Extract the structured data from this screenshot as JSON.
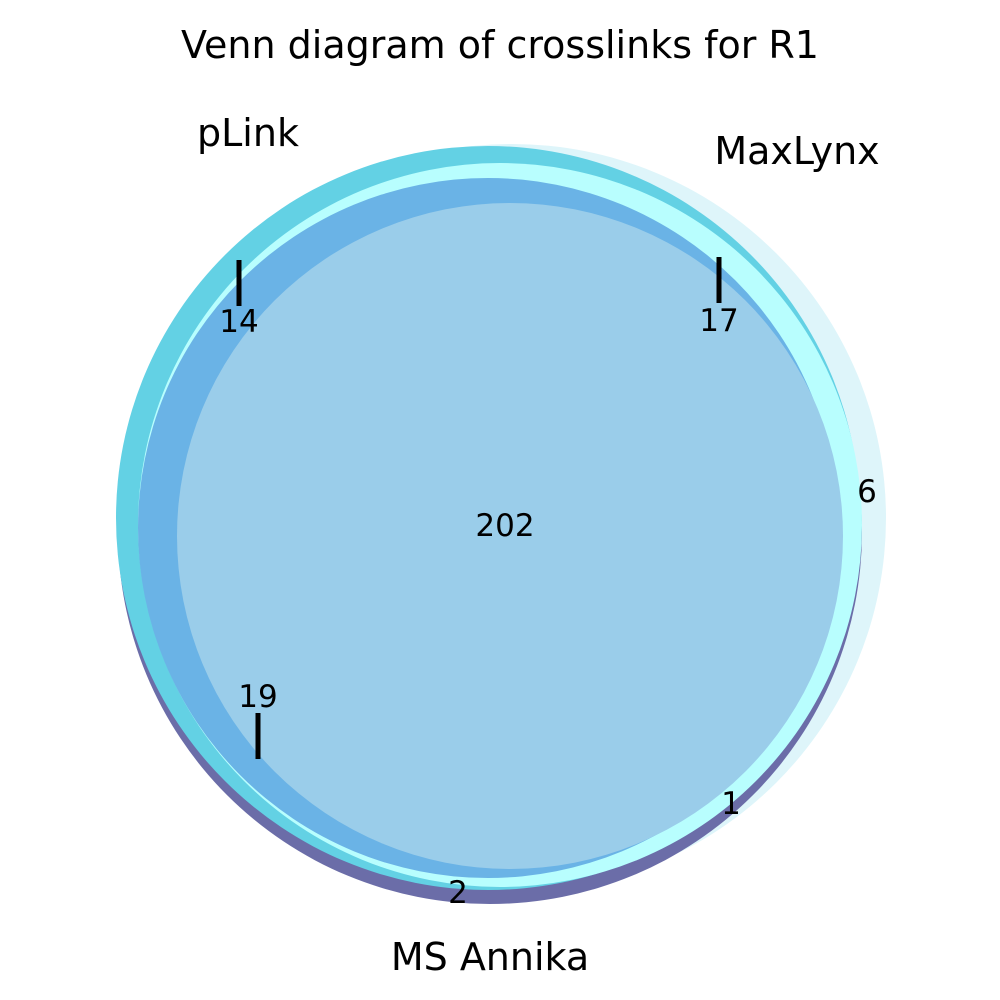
{
  "title": "Venn diagram of crosslinks for R1",
  "sets": {
    "plink": {
      "label": "pLink",
      "color": "#63d1e4"
    },
    "maxlynx": {
      "label": "MaxLynx",
      "color": "#b8fefe"
    },
    "msannika": {
      "label": "MS Annika",
      "color": "#6b6da8"
    }
  },
  "region_colors": {
    "maxlynx_only": "#def5fa",
    "plink_msannika": "#6ab3e6",
    "all_three": "#9acdea"
  },
  "regions": {
    "plink_maxlynx": "14",
    "maxlynx_msannika_top": "17",
    "maxlynx_only": "6",
    "all_three": "202",
    "plink_msannika": "19",
    "maxlynx_msannika_bottom": "1",
    "msannika_only": "2"
  }
}
